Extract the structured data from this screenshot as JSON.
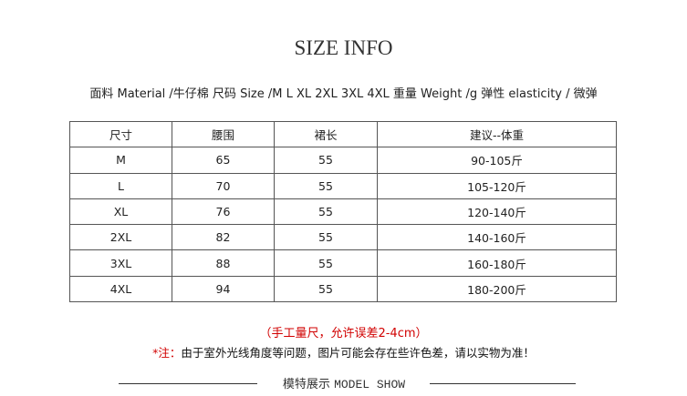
{
  "title": "SIZE INFO",
  "info": "面料 Material /牛仔棉 尺码 Size /M L XL 2XL 3XL 4XL 重量 Weight /g 弹性 elasticity / 微弹",
  "table": {
    "headers": [
      "尺寸",
      "腰围",
      "裙长",
      "建议--体重"
    ],
    "rows": [
      [
        "M",
        "65",
        "55",
        "90-105斤"
      ],
      [
        "L",
        "70",
        "55",
        "105-120斤"
      ],
      [
        "XL",
        "76",
        "55",
        "120-140斤"
      ],
      [
        "2XL",
        "82",
        "55",
        "140-160斤"
      ],
      [
        "3XL",
        "88",
        "55",
        "160-180斤"
      ],
      [
        "4XL",
        "94",
        "55",
        "180-200斤"
      ]
    ]
  },
  "note1": "（手工量尺，允许误差2-4cm）",
  "note2_prefix": "*注：",
  "note2": "由于室外光线角度等问题，图片可能会存在些许色差，请以实物为准！",
  "section": {
    "cn": "模特展示",
    "en": "MODEL SHOW"
  },
  "colors": {
    "red": "#d10000"
  }
}
